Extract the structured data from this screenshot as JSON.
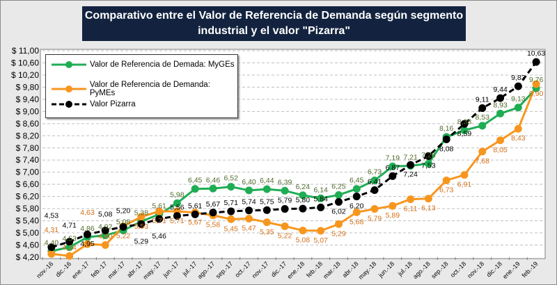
{
  "chart_data": {
    "type": "line",
    "title": "Comparativo entre el Valor de Referencia de Demanda según segmento industrial y el valor \"Pizarra\"",
    "categories": [
      "nov.-16",
      "dic.-16",
      "ene.-17",
      "feb.-17",
      "mar.-17",
      "abr.-17",
      "may.-17",
      "jun.-17",
      "jul.-17",
      "ago.-17",
      "sep.-17",
      "oct.-17",
      "nov.-17",
      "dic.-17",
      "ene.-18",
      "feb.-18",
      "mar.-18",
      "abr.-18",
      "may.-18",
      "jun.-18",
      "jul.-18",
      "ago.-18",
      "sep.-18",
      "oct.-18",
      "nov.-18",
      "dic.-18",
      "ene.-19",
      "feb.-19"
    ],
    "ylim": [
      4.2,
      11.0
    ],
    "yticks": [
      "$ 4,20",
      "$ 4,60",
      "$ 5,00",
      "$ 5,40",
      "$ 5,80",
      "$ 6,20",
      "$ 6,60",
      "$ 7,00",
      "$ 7,40",
      "$ 7,80",
      "$ 8,20",
      "$ 8,60",
      "$ 9,00",
      "$ 9,40",
      "$ 9,80",
      "$ 10,20",
      "$ 10,60",
      "$ 11,00"
    ],
    "grid": true,
    "legend_position": "top-left",
    "series": [
      {
        "name": "Valor de Referencia de Demada: MyGEs",
        "color": "#1fad54",
        "style": "solid",
        "values": [
          4.4,
          4.53,
          4.86,
          4.92,
          5.08,
          5.38,
          5.61,
          5.98,
          6.45,
          6.46,
          6.52,
          6.4,
          6.44,
          6.39,
          6.24,
          6.14,
          6.25,
          6.45,
          6.73,
          7.19,
          7.21,
          7.28,
          8.16,
          8.38,
          8.53,
          8.93,
          9.13,
          9.76
        ]
      },
      {
        "name": "Valor de Referencia de Demanda: PyMEs",
        "color": "#f7961e",
        "label_color": "#d2701a",
        "style": "solid",
        "values": [
          4.31,
          4.24,
          4.63,
          4.6,
          5.22,
          5.53,
          5.71,
          5.71,
          5.67,
          5.58,
          5.45,
          5.47,
          5.35,
          5.22,
          5.08,
          5.07,
          5.29,
          5.68,
          5.79,
          5.89,
          6.11,
          6.13,
          6.73,
          6.91,
          7.68,
          8.05,
          8.43,
          9.9
        ]
      },
      {
        "name": "Valor Pizarra",
        "color": "#000000",
        "style": "dashed",
        "values": [
          4.53,
          4.71,
          4.95,
          5.08,
          5.2,
          5.29,
          5.46,
          5.56,
          5.61,
          5.67,
          5.71,
          5.74,
          5.75,
          5.79,
          5.8,
          5.84,
          6.02,
          6.2,
          6.41,
          6.87,
          7.24,
          7.53,
          8.08,
          8.59,
          9.11,
          9.44,
          9.83,
          10.63
        ]
      }
    ]
  }
}
